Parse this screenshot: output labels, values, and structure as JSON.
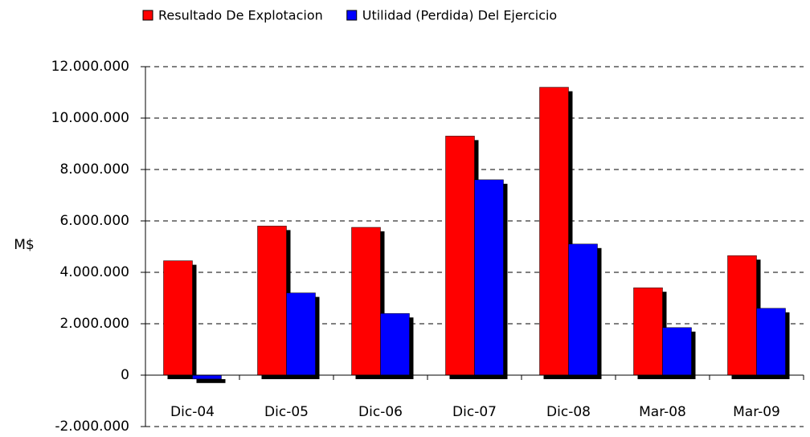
{
  "chart_data": {
    "type": "bar",
    "y_label": "M$",
    "categories": [
      "Dic-04",
      "Dic-05",
      "Dic-06",
      "Dic-07",
      "Dic-08",
      "Mar-08",
      "Mar-09"
    ],
    "series": [
      {
        "name": "Resultado De Explotacion",
        "color": "#ff0000",
        "values": [
          4450000,
          5800000,
          5750000,
          9300000,
          11200000,
          3400000,
          4650000
        ]
      },
      {
        "name": "Utilidad (Perdida) Del Ejercicio",
        "color": "#0000ff",
        "values": [
          -150000,
          3200000,
          2400000,
          7600000,
          5100000,
          1850000,
          2600000
        ]
      }
    ],
    "ylim": [
      -2000000,
      12000000
    ],
    "yticks": [
      {
        "value": -2000000,
        "label": "-2.000.000"
      },
      0,
      {
        "value": 2000000,
        "label": "2.000.000"
      },
      {
        "value": 4000000,
        "label": "4.000.000"
      },
      {
        "value": 6000000,
        "label": "6.000.000"
      },
      {
        "value": 8000000,
        "label": "8.000.000"
      },
      {
        "value": 10000000,
        "label": "10.000.000"
      },
      {
        "value": 12000000,
        "label": "12.000.000"
      }
    ],
    "grid": true,
    "legend": "top"
  }
}
